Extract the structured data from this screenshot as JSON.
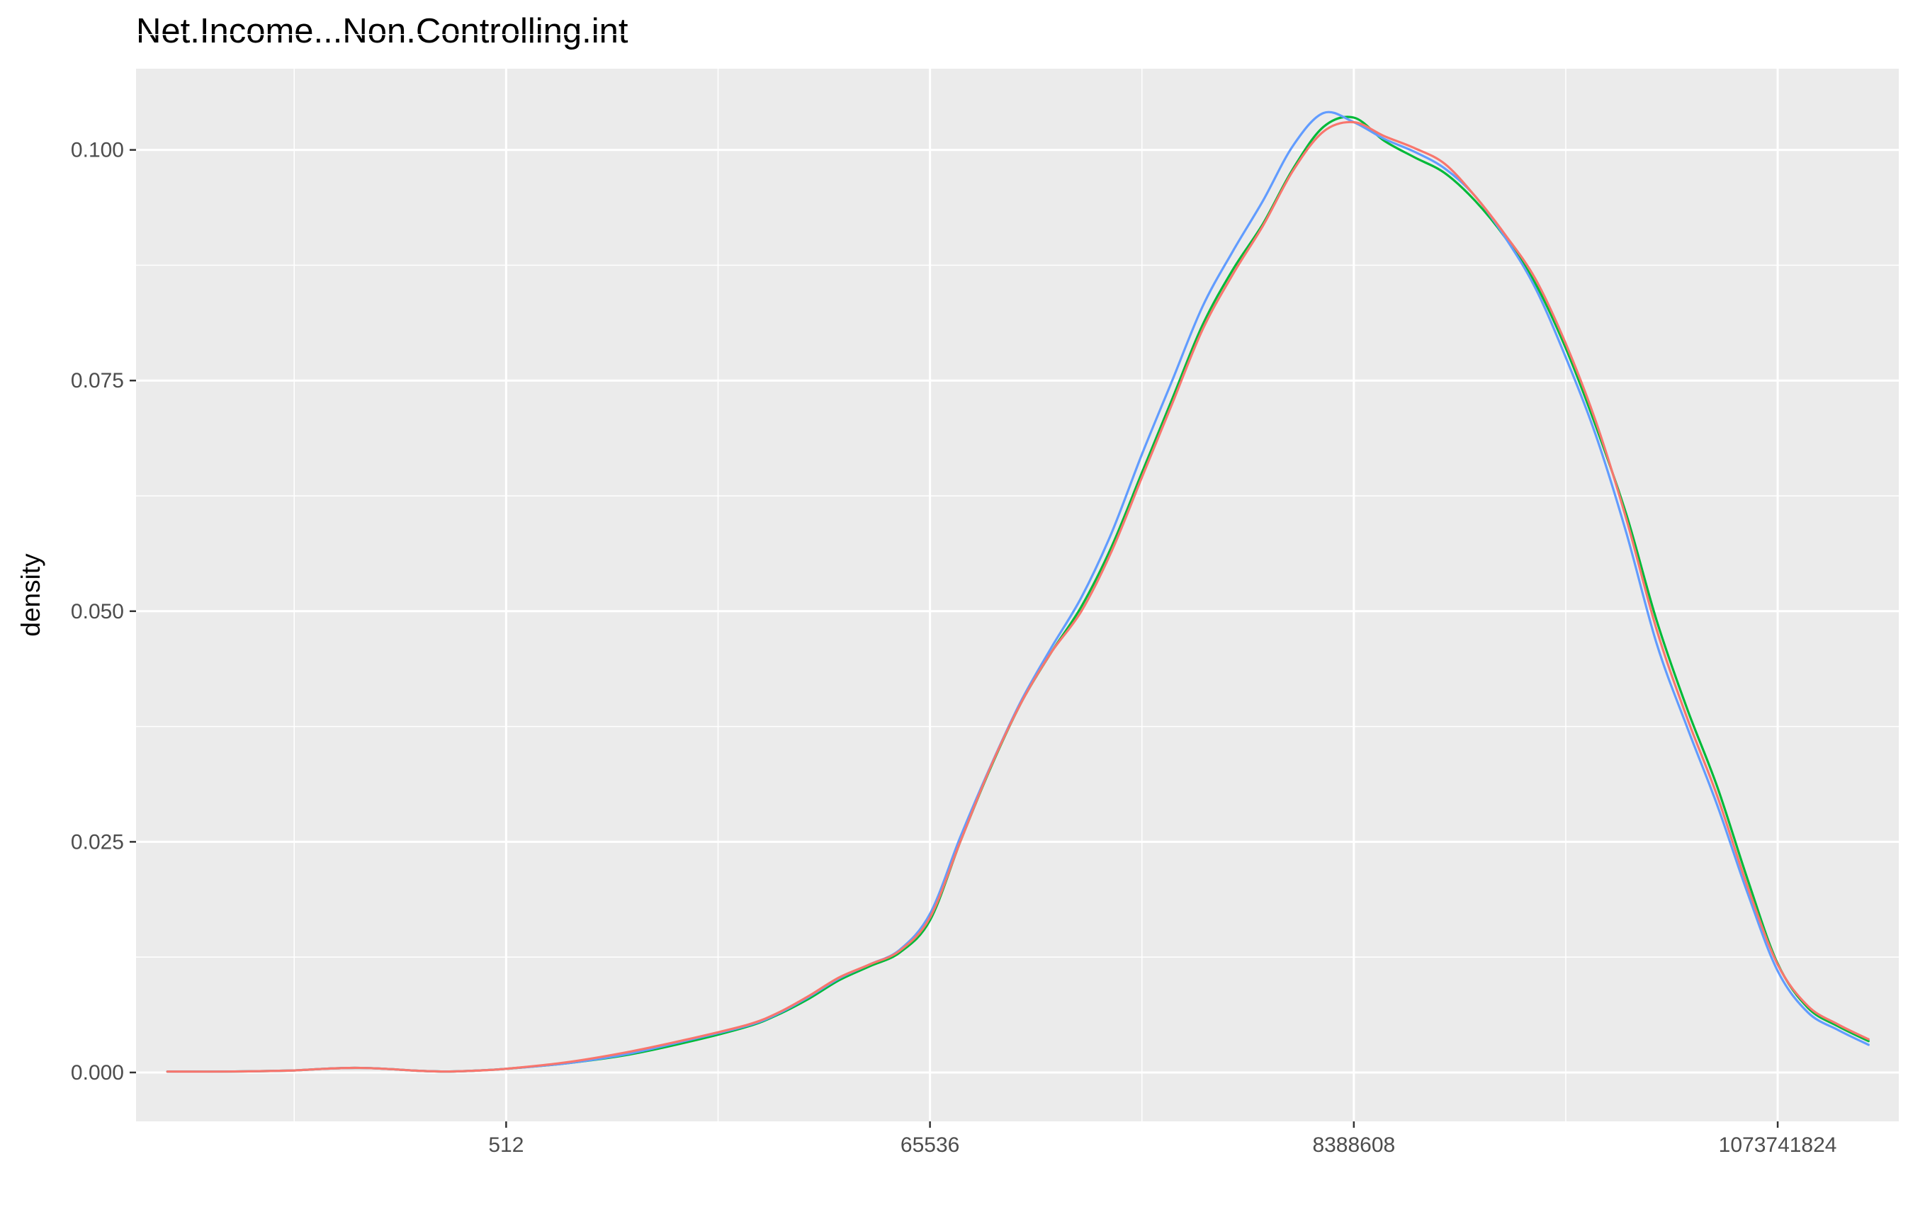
{
  "chart_data": {
    "type": "line",
    "title": "Net.Income...Non.Controlling.int",
    "xlabel": "",
    "ylabel": "density",
    "x_scale": "log2",
    "xlim": [
      7.4,
      4294967296
    ],
    "ylim": [
      -0.0053,
      0.1088
    ],
    "x_ticks": [
      512,
      65536,
      8388608,
      1073741824
    ],
    "x_tick_labels": [
      "512",
      "65536",
      "8388608",
      "1073741824"
    ],
    "y_ticks": [
      0,
      0.025,
      0.05,
      0.075,
      0.1
    ],
    "y_tick_labels": [
      "0.000",
      "0.025",
      "0.050",
      "0.075",
      "0.100"
    ],
    "grid": true,
    "legend": "none",
    "series": [
      {
        "color": "#00BA38",
        "x": [
          10.6,
          21.1,
          42.2,
          64,
          90.5,
          128,
          181,
          256,
          362,
          512,
          1024,
          2048,
          4096,
          8192,
          11585,
          16384,
          23170,
          32768,
          46341,
          65536,
          92682,
          131072,
          185364,
          262144,
          370728,
          524288,
          741455,
          1048576,
          1482910,
          2097152,
          2965821,
          4194304,
          5931642,
          8388608,
          11863283,
          16777216,
          23726566,
          33554432,
          47453133,
          67108864,
          94906265,
          134217728,
          189812531,
          268435456,
          379625062,
          536870912,
          759250125,
          1073741824,
          1518500250,
          2147483648,
          3037000500
        ],
        "y": [
          0.0001,
          0.0001,
          0.0002,
          0.0004,
          0.0005,
          0.0004,
          0.0002,
          0.0001,
          0.0002,
          0.0004,
          0.001,
          0.0019,
          0.0033,
          0.005,
          0.0063,
          0.008,
          0.01,
          0.0115,
          0.013,
          0.0165,
          0.025,
          0.033,
          0.04,
          0.0455,
          0.0505,
          0.057,
          0.065,
          0.073,
          0.081,
          0.087,
          0.092,
          0.098,
          0.1025,
          0.1035,
          0.101,
          0.0992,
          0.0975,
          0.0945,
          0.0905,
          0.0855,
          0.0785,
          0.07,
          0.0605,
          0.049,
          0.0395,
          0.031,
          0.021,
          0.0118,
          0.007,
          0.005,
          0.0034
        ]
      },
      {
        "color": "#619CFF",
        "x": [
          10.6,
          21.1,
          42.2,
          64,
          90.5,
          128,
          181,
          256,
          362,
          512,
          1024,
          2048,
          4096,
          8192,
          11585,
          16384,
          23170,
          32768,
          46341,
          65536,
          92682,
          131072,
          185364,
          262144,
          370728,
          524288,
          741455,
          1048576,
          1482910,
          2097152,
          2965821,
          4194304,
          5931642,
          8388608,
          11863283,
          16777216,
          23726566,
          33554432,
          47453133,
          67108864,
          94906265,
          134217728,
          189812531,
          268435456,
          379625062,
          536870912,
          759250125,
          1073741824,
          1518500250,
          2147483648,
          3037000500
        ],
        "y": [
          0.0001,
          0.0001,
          0.0002,
          0.0004,
          0.0005,
          0.0004,
          0.0002,
          0.0001,
          0.0002,
          0.0004,
          0.001,
          0.002,
          0.0035,
          0.0051,
          0.0064,
          0.0082,
          0.0102,
          0.0117,
          0.0133,
          0.0172,
          0.0255,
          0.0332,
          0.0402,
          0.046,
          0.0515,
          0.0585,
          0.067,
          0.075,
          0.083,
          0.089,
          0.0945,
          0.1005,
          0.104,
          0.103,
          0.1012,
          0.0998,
          0.098,
          0.095,
          0.0905,
          0.085,
          0.0775,
          0.069,
          0.0585,
          0.0465,
          0.0375,
          0.029,
          0.0195,
          0.011,
          0.0065,
          0.0046,
          0.003
        ]
      },
      {
        "color": "#F8766D",
        "x": [
          10.6,
          21.1,
          42.2,
          64,
          90.5,
          128,
          181,
          256,
          362,
          512,
          1024,
          2048,
          4096,
          8192,
          11585,
          16384,
          23170,
          32768,
          46341,
          65536,
          92682,
          131072,
          185364,
          262144,
          370728,
          524288,
          741455,
          1048576,
          1482910,
          2097152,
          2965821,
          4194304,
          5931642,
          8388608,
          11863283,
          16777216,
          23726566,
          33554432,
          47453133,
          67108864,
          94906265,
          134217728,
          189812531,
          268435456,
          379625062,
          536870912,
          759250125,
          1073741824,
          1518500250,
          2147483648,
          3037000500
        ],
        "y": [
          0.0001,
          0.0001,
          0.0002,
          0.0004,
          0.0005,
          0.0004,
          0.0002,
          0.0001,
          0.0002,
          0.0004,
          0.0011,
          0.0022,
          0.0036,
          0.0052,
          0.0065,
          0.0083,
          0.0103,
          0.0117,
          0.0132,
          0.0168,
          0.025,
          0.0331,
          0.04,
          0.0455,
          0.05,
          0.0565,
          0.0645,
          0.0725,
          0.0805,
          0.0865,
          0.0918,
          0.0978,
          0.102,
          0.103,
          0.1015,
          0.1002,
          0.0985,
          0.095,
          0.0908,
          0.086,
          0.079,
          0.0705,
          0.06,
          0.048,
          0.0385,
          0.03,
          0.0202,
          0.0117,
          0.0072,
          0.0052,
          0.0036
        ]
      }
    ]
  }
}
